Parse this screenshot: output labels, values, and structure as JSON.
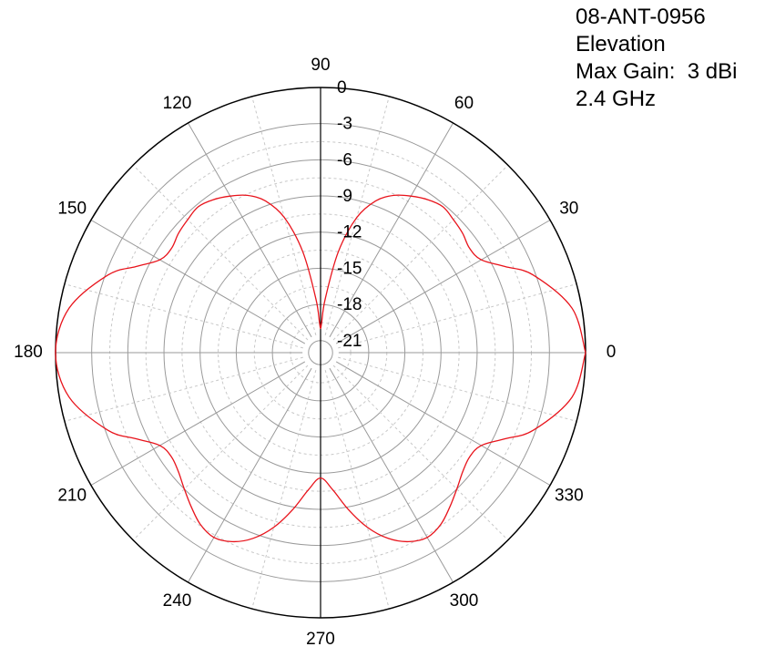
{
  "info": {
    "model": "08-ANT-0956",
    "plane": "Elevation",
    "max_gain": "Max Gain:  3 dBi",
    "frequency": "2.4 GHz"
  },
  "chart_data": {
    "type": "line",
    "polar": true,
    "angle_unit": "degrees",
    "angle_ticks": [
      0,
      30,
      60,
      90,
      120,
      150,
      180,
      210,
      240,
      270,
      300,
      330
    ],
    "angle_tick_labels": [
      "0",
      "30",
      "60",
      "90",
      "120",
      "150",
      "180",
      "210",
      "240",
      "270",
      "300",
      "330"
    ],
    "radial_ticks": [
      0,
      -3,
      -6,
      -9,
      -12,
      -15,
      -18,
      -21
    ],
    "radial_tick_labels": [
      "0",
      "-3",
      "-6",
      "-9",
      "-12",
      "-15",
      "-18",
      "-21"
    ],
    "rlim": [
      -22,
      0
    ],
    "grid": true,
    "series": [
      {
        "color": "#e8131b",
        "theta": [
          0,
          10,
          20,
          25,
          30,
          35,
          40,
          45,
          50,
          55,
          60,
          65,
          70,
          75,
          80,
          85,
          88,
          90,
          92,
          95,
          100,
          105,
          110,
          115,
          120,
          125,
          130,
          135,
          140,
          145,
          150,
          155,
          160,
          170,
          180,
          190,
          200,
          205,
          210,
          215,
          220,
          225,
          230,
          235,
          240,
          245,
          250,
          255,
          260,
          265,
          270,
          275,
          280,
          285,
          290,
          295,
          300,
          305,
          310,
          315,
          320,
          325,
          330,
          335,
          340,
          350,
          360
        ],
        "r": [
          0,
          -0.8,
          -3.2,
          -5.1,
          -6.6,
          -6.9,
          -6.6,
          -6.4,
          -6.2,
          -6.5,
          -7.0,
          -7.6,
          -8.6,
          -10.4,
          -13.5,
          -17.5,
          -19.5,
          -20,
          -19.5,
          -17.5,
          -13.5,
          -10.4,
          -8.6,
          -7.6,
          -7.0,
          -6.5,
          -6.2,
          -6.4,
          -6.6,
          -6.9,
          -6.6,
          -5.1,
          -3.2,
          -0.8,
          0,
          -0.8,
          -3.2,
          -5.1,
          -6.6,
          -6.9,
          -6.6,
          -6.0,
          -5.3,
          -4.6,
          -4.3,
          -4.7,
          -5.6,
          -7.0,
          -8.8,
          -10.6,
          -11.6,
          -10.6,
          -8.8,
          -7.0,
          -5.6,
          -4.7,
          -4.3,
          -4.6,
          -5.3,
          -6.0,
          -6.6,
          -6.9,
          -6.6,
          -5.1,
          -3.2,
          -0.8,
          0
        ]
      }
    ]
  }
}
